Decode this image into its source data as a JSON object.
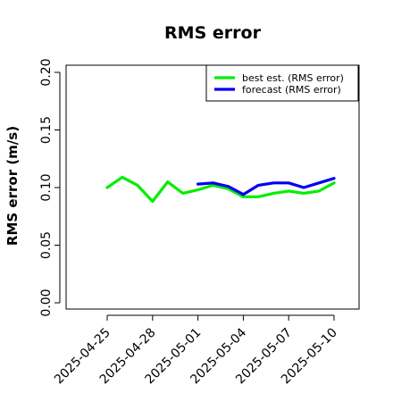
{
  "chart_data": {
    "type": "line",
    "title": "RMS error",
    "xlabel": "",
    "ylabel": "RMS error (m/s)",
    "ylim": [
      0.0,
      0.21
    ],
    "y_ticks": [
      0.0,
      0.05,
      0.1,
      0.15,
      0.2
    ],
    "y_tick_labels": [
      "0.00",
      "0.05",
      "0.10",
      "0.15",
      "0.20"
    ],
    "x_range": [
      "2025-04-24",
      "2025-05-11"
    ],
    "x_ticks": [
      "2025-04-25",
      "2025-04-28",
      "2025-05-01",
      "2025-05-04",
      "2025-05-07",
      "2025-05-10"
    ],
    "x_tick_label_colors": [
      "#000000",
      "#000000",
      "#228B22",
      "#000000",
      "#000000",
      "#000000"
    ],
    "grid": false,
    "legend_position": "top-right",
    "series": [
      {
        "name": "best est. (RMS error)",
        "color": "#00ee00",
        "x": [
          "2025-04-25",
          "2025-04-26",
          "2025-04-27",
          "2025-04-28",
          "2025-04-29",
          "2025-04-30",
          "2025-05-01",
          "2025-05-02",
          "2025-05-03",
          "2025-05-04",
          "2025-05-05",
          "2025-05-06",
          "2025-05-07",
          "2025-05-08",
          "2025-05-09",
          "2025-05-10"
        ],
        "values": [
          0.1,
          0.109,
          0.102,
          0.088,
          0.105,
          0.095,
          0.098,
          0.102,
          0.099,
          0.092,
          0.092,
          0.095,
          0.097,
          0.095,
          0.097,
          0.104
        ]
      },
      {
        "name": "forecast (RMS error)",
        "color": "#0000ee",
        "x": [
          "2025-05-01",
          "2025-05-02",
          "2025-05-03",
          "2025-05-04",
          "2025-05-05",
          "2025-05-06",
          "2025-05-07",
          "2025-05-08",
          "2025-05-09",
          "2025-05-10"
        ],
        "values": [
          0.103,
          0.104,
          0.101,
          0.094,
          0.102,
          0.104,
          0.104,
          0.1,
          0.104,
          0.108
        ]
      }
    ]
  }
}
